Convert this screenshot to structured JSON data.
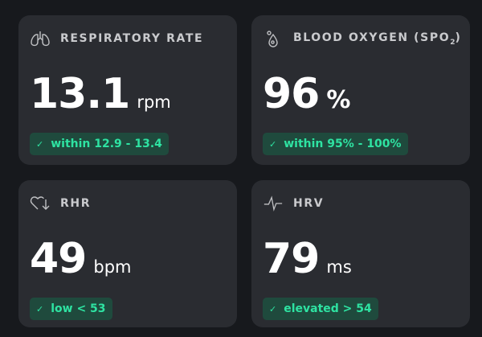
{
  "cards": [
    {
      "icon": "lungs-icon",
      "title": "RESPIRATORY RATE",
      "value": "13.1",
      "unit": "rpm",
      "status": "within 12.9 - 13.4"
    },
    {
      "icon": "droplet-icon",
      "title": "BLOOD OXYGEN (SPO",
      "title_sub": "2",
      "title_end": ")",
      "value": "96",
      "unit": "%",
      "status": "within 95% - 100%"
    },
    {
      "icon": "heart-down-icon",
      "title": "RHR",
      "value": "49",
      "unit": "bpm",
      "status": "low < 53"
    },
    {
      "icon": "pulse-icon",
      "title": "HRV",
      "value": "79",
      "unit": "ms",
      "status": "elevated > 54"
    }
  ],
  "check": "✓",
  "colors": {
    "background": "#17191d",
    "card": "#2a2c31",
    "badge_bg": "#1f4a3d",
    "badge_text": "#2ee3a2"
  }
}
